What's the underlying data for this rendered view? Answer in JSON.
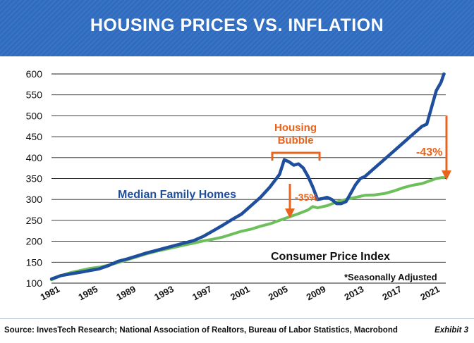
{
  "header": {
    "title": "HOUSING PRICES VS. INFLATION"
  },
  "footer": {
    "source": "Source: InvesTech Research; National Association of Realtors, Bureau of Labor Statistics, Macrobond",
    "exhibit": "Exhibit 3"
  },
  "colors": {
    "header_bg": "#2f6bbf",
    "homes": "#1f4e9c",
    "cpi": "#6cbf5a",
    "annotation": "#e8641e"
  },
  "chart_data": {
    "type": "line",
    "title": "HOUSING PRICES VS. INFLATION",
    "ylim": [
      100,
      600
    ],
    "xlim": [
      1981,
      2022.5
    ],
    "y_ticks": [
      100,
      150,
      200,
      250,
      300,
      350,
      400,
      450,
      500,
      550,
      600
    ],
    "x_ticks": [
      1981,
      1985,
      1989,
      1993,
      1997,
      2001,
      2005,
      2009,
      2013,
      2017,
      2021
    ],
    "grid": true,
    "series": [
      {
        "name": "Median Family Homes",
        "x": [
          1981,
          1982,
          1983,
          1984,
          1985,
          1986,
          1987,
          1988,
          1989,
          1990,
          1991,
          1992,
          1993,
          1994,
          1995,
          1996,
          1997,
          1998,
          1999,
          2000,
          2001,
          2002,
          2003,
          2004,
          2005,
          2005.5,
          2006,
          2006.5,
          2007,
          2007.5,
          2008,
          2008.5,
          2009,
          2009.5,
          2010,
          2010.5,
          2011,
          2011.5,
          2012,
          2013,
          2013.5,
          2014,
          2015,
          2016,
          2017,
          2018,
          2019,
          2020,
          2020.5,
          2021,
          2021.5,
          2022,
          2022.3
        ],
        "values": [
          110,
          118,
          122,
          126,
          130,
          134,
          142,
          152,
          158,
          165,
          172,
          178,
          184,
          190,
          196,
          202,
          212,
          225,
          238,
          252,
          265,
          285,
          305,
          330,
          360,
          395,
          390,
          382,
          385,
          375,
          355,
          330,
          300,
          302,
          305,
          300,
          290,
          290,
          295,
          335,
          350,
          355,
          375,
          395,
          415,
          435,
          455,
          475,
          480,
          520,
          560,
          580,
          600
        ]
      },
      {
        "name": "Consumer Price Index",
        "x": [
          1981,
          1982,
          1983,
          1984,
          1985,
          1986,
          1987,
          1988,
          1989,
          1990,
          1991,
          1992,
          1993,
          1994,
          1995,
          1996,
          1997,
          1998,
          1999,
          2000,
          2001,
          2002,
          2003,
          2004,
          2005,
          2006,
          2007,
          2008,
          2008.5,
          2009,
          2010,
          2011,
          2012,
          2013,
          2014,
          2015,
          2016,
          2017,
          2018,
          2019,
          2020,
          2021,
          2021.5,
          2022,
          2022.3
        ],
        "values": [
          108,
          118,
          125,
          130,
          135,
          138,
          143,
          149,
          156,
          163,
          170,
          176,
          181,
          186,
          191,
          196,
          201,
          205,
          210,
          217,
          224,
          229,
          236,
          242,
          250,
          258,
          266,
          275,
          283,
          280,
          285,
          294,
          300,
          305,
          310,
          311,
          314,
          320,
          328,
          334,
          338,
          346,
          350,
          352,
          352
        ]
      }
    ],
    "annotations": [
      {
        "label": "Housing\nBubble"
      },
      {
        "label": "-35%"
      },
      {
        "label": "-43%"
      },
      {
        "label": "Median Family Homes"
      },
      {
        "label": "Consumer Price Index"
      },
      {
        "label": "*Seasonally Adjusted"
      }
    ]
  }
}
